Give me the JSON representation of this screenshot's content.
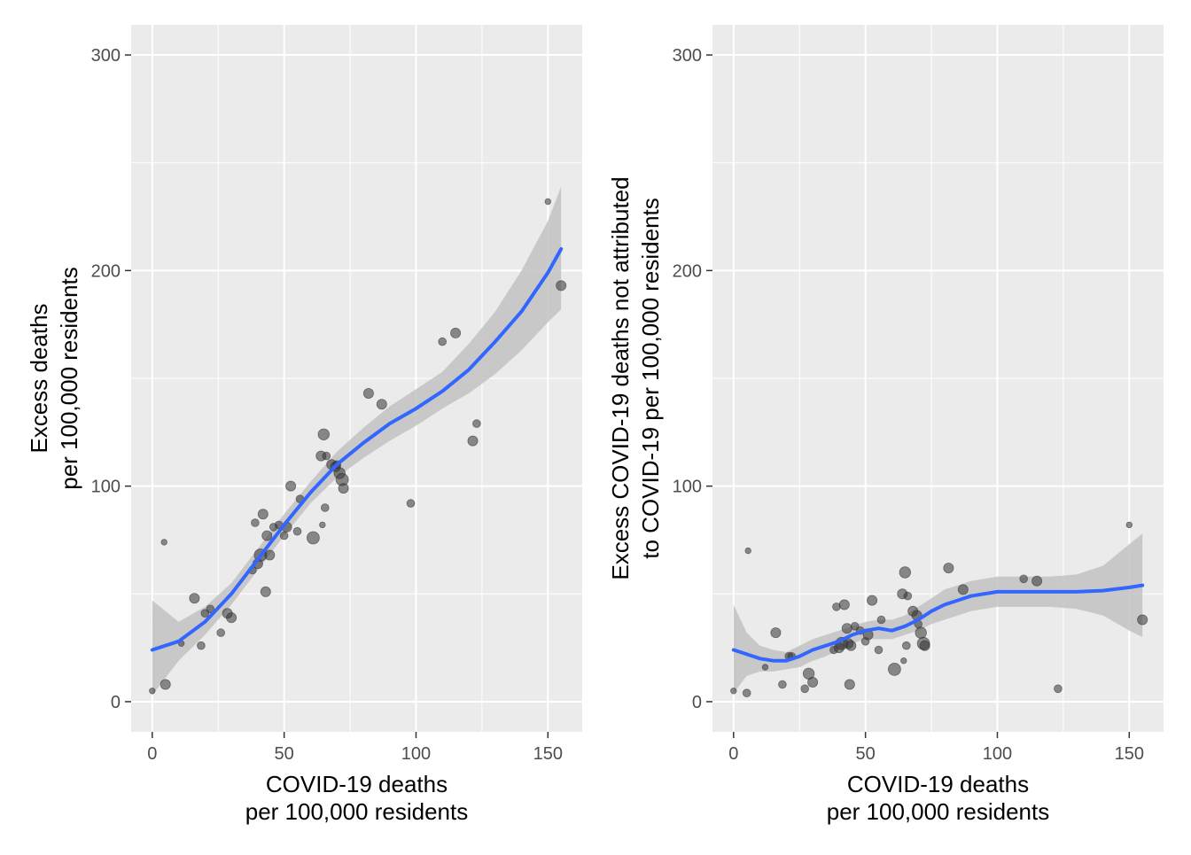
{
  "chart_data": [
    {
      "type": "scatter",
      "title": "",
      "xlabel": [
        "COVID-19 deaths",
        "per 100,000 residents"
      ],
      "ylabel": [
        "Excess deaths",
        "per 100,000 residents"
      ],
      "xlim": [
        -8,
        163
      ],
      "ylim": [
        -14,
        314
      ],
      "xticks": [
        0,
        50,
        100,
        150
      ],
      "yticks": [
        0,
        100,
        200,
        300
      ],
      "grid": true,
      "panel_color": "#EBEBEB",
      "point_color": "#333333",
      "smooth_color": "#3366FF",
      "ribbon_color": "#C2C2C2",
      "points": [
        {
          "x": 0,
          "y": 5,
          "s": 1
        },
        {
          "x": 4.5,
          "y": 74,
          "s": 1
        },
        {
          "x": 5,
          "y": 8,
          "s": 2
        },
        {
          "x": 11,
          "y": 27,
          "s": 1
        },
        {
          "x": 16,
          "y": 48,
          "s": 2
        },
        {
          "x": 18.5,
          "y": 26,
          "s": 1.5
        },
        {
          "x": 20,
          "y": 41,
          "s": 1.5
        },
        {
          "x": 22,
          "y": 43,
          "s": 1.5
        },
        {
          "x": 26,
          "y": 32,
          "s": 1.5
        },
        {
          "x": 28.5,
          "y": 41,
          "s": 2
        },
        {
          "x": 30,
          "y": 39,
          "s": 2
        },
        {
          "x": 38,
          "y": 61,
          "s": 1.5
        },
        {
          "x": 39,
          "y": 83,
          "s": 1.5
        },
        {
          "x": 40,
          "y": 64,
          "s": 2
        },
        {
          "x": 41,
          "y": 68,
          "s": 2.6
        },
        {
          "x": 42,
          "y": 87,
          "s": 2
        },
        {
          "x": 43,
          "y": 51,
          "s": 2
        },
        {
          "x": 43.5,
          "y": 77,
          "s": 2
        },
        {
          "x": 44.5,
          "y": 68,
          "s": 2
        },
        {
          "x": 46,
          "y": 81,
          "s": 1.5
        },
        {
          "x": 48,
          "y": 82,
          "s": 1.5
        },
        {
          "x": 50,
          "y": 77,
          "s": 1.5
        },
        {
          "x": 51,
          "y": 81,
          "s": 2
        },
        {
          "x": 52.5,
          "y": 100,
          "s": 2
        },
        {
          "x": 55,
          "y": 79,
          "s": 1.5
        },
        {
          "x": 56,
          "y": 94,
          "s": 1.5
        },
        {
          "x": 61,
          "y": 76,
          "s": 2.6
        },
        {
          "x": 64,
          "y": 114,
          "s": 2
        },
        {
          "x": 64.5,
          "y": 82,
          "s": 1
        },
        {
          "x": 65,
          "y": 124,
          "s": 2.3
        },
        {
          "x": 65.5,
          "y": 90,
          "s": 1.5
        },
        {
          "x": 66,
          "y": 114,
          "s": 1.5
        },
        {
          "x": 68,
          "y": 110,
          "s": 2
        },
        {
          "x": 69.5,
          "y": 109,
          "s": 2
        },
        {
          "x": 70,
          "y": 110,
          "s": 1.5
        },
        {
          "x": 71,
          "y": 106,
          "s": 2.3
        },
        {
          "x": 72,
          "y": 103,
          "s": 2.6
        },
        {
          "x": 72.5,
          "y": 99,
          "s": 2
        },
        {
          "x": 82,
          "y": 143,
          "s": 2
        },
        {
          "x": 87,
          "y": 138,
          "s": 2
        },
        {
          "x": 98,
          "y": 92,
          "s": 1.5
        },
        {
          "x": 110,
          "y": 167,
          "s": 1.5
        },
        {
          "x": 115,
          "y": 171,
          "s": 2
        },
        {
          "x": 121.5,
          "y": 121,
          "s": 2
        },
        {
          "x": 123,
          "y": 129,
          "s": 1.5
        },
        {
          "x": 150,
          "y": 232,
          "s": 1
        },
        {
          "x": 155,
          "y": 193,
          "s": 2
        }
      ],
      "smooth": [
        [
          0,
          24
        ],
        [
          10,
          28
        ],
        [
          20,
          37
        ],
        [
          30,
          50
        ],
        [
          40,
          66
        ],
        [
          50,
          82
        ],
        [
          60,
          97
        ],
        [
          70,
          110
        ],
        [
          80,
          120
        ],
        [
          90,
          129
        ],
        [
          100,
          136
        ],
        [
          110,
          144
        ],
        [
          120,
          154
        ],
        [
          130,
          167
        ],
        [
          140,
          181
        ],
        [
          150,
          199
        ],
        [
          155,
          210
        ]
      ],
      "ribbon_lower": [
        [
          0,
          3
        ],
        [
          10,
          19
        ],
        [
          20,
          31
        ],
        [
          30,
          45
        ],
        [
          40,
          61
        ],
        [
          50,
          77
        ],
        [
          60,
          92
        ],
        [
          70,
          104
        ],
        [
          80,
          113
        ],
        [
          90,
          121
        ],
        [
          100,
          128
        ],
        [
          110,
          136
        ],
        [
          120,
          143
        ],
        [
          130,
          152
        ],
        [
          140,
          163
        ],
        [
          150,
          176
        ],
        [
          155,
          182
        ]
      ],
      "ribbon_upper": [
        [
          0,
          47
        ],
        [
          10,
          37
        ],
        [
          20,
          44
        ],
        [
          30,
          55
        ],
        [
          40,
          71
        ],
        [
          50,
          87
        ],
        [
          60,
          102
        ],
        [
          70,
          116
        ],
        [
          80,
          127
        ],
        [
          90,
          137
        ],
        [
          100,
          145
        ],
        [
          110,
          153
        ],
        [
          120,
          166
        ],
        [
          130,
          181
        ],
        [
          140,
          200
        ],
        [
          150,
          223
        ],
        [
          155,
          239
        ]
      ]
    },
    {
      "type": "scatter",
      "title": "",
      "xlabel": [
        "COVID-19 deaths",
        "per 100,000 residents"
      ],
      "ylabel": [
        "Excess COVID-19 deaths not attributed",
        "to COVID-19 per 100,000 residents"
      ],
      "xlim": [
        -8,
        163
      ],
      "ylim": [
        -14,
        314
      ],
      "xticks": [
        0,
        50,
        100,
        150
      ],
      "yticks": [
        0,
        100,
        200,
        300
      ],
      "grid": true,
      "panel_color": "#EBEBEB",
      "point_color": "#333333",
      "smooth_color": "#3366FF",
      "ribbon_color": "#C2C2C2",
      "points": [
        {
          "x": 0,
          "y": 5,
          "s": 1
        },
        {
          "x": 5,
          "y": 4,
          "s": 1.5
        },
        {
          "x": 5.5,
          "y": 70,
          "s": 1
        },
        {
          "x": 12,
          "y": 16,
          "s": 1
        },
        {
          "x": 16,
          "y": 32,
          "s": 2
        },
        {
          "x": 18.5,
          "y": 8,
          "s": 1.5
        },
        {
          "x": 21,
          "y": 21,
          "s": 1.5
        },
        {
          "x": 22,
          "y": 21,
          "s": 1.5
        },
        {
          "x": 27,
          "y": 6,
          "s": 1.5
        },
        {
          "x": 28.5,
          "y": 13,
          "s": 2.3
        },
        {
          "x": 30,
          "y": 9,
          "s": 2
        },
        {
          "x": 38,
          "y": 24,
          "s": 1.5
        },
        {
          "x": 39,
          "y": 44,
          "s": 1.5
        },
        {
          "x": 40,
          "y": 25,
          "s": 2
        },
        {
          "x": 41,
          "y": 27,
          "s": 2.6
        },
        {
          "x": 42,
          "y": 45,
          "s": 2
        },
        {
          "x": 43,
          "y": 34,
          "s": 2
        },
        {
          "x": 43.5,
          "y": 27,
          "s": 2
        },
        {
          "x": 44,
          "y": 8,
          "s": 2
        },
        {
          "x": 44.5,
          "y": 26,
          "s": 2
        },
        {
          "x": 46,
          "y": 35,
          "s": 1.5
        },
        {
          "x": 48,
          "y": 33,
          "s": 1.5
        },
        {
          "x": 50,
          "y": 28,
          "s": 1.5
        },
        {
          "x": 51,
          "y": 31,
          "s": 2
        },
        {
          "x": 52.5,
          "y": 47,
          "s": 2
        },
        {
          "x": 55,
          "y": 24,
          "s": 1.5
        },
        {
          "x": 56,
          "y": 38,
          "s": 1.5
        },
        {
          "x": 61,
          "y": 15,
          "s": 2.6
        },
        {
          "x": 64,
          "y": 50,
          "s": 2
        },
        {
          "x": 64.5,
          "y": 19,
          "s": 1
        },
        {
          "x": 65,
          "y": 60,
          "s": 2.3
        },
        {
          "x": 65.5,
          "y": 26,
          "s": 1.5
        },
        {
          "x": 66,
          "y": 49,
          "s": 1.5
        },
        {
          "x": 68,
          "y": 42,
          "s": 2
        },
        {
          "x": 69.5,
          "y": 40,
          "s": 2
        },
        {
          "x": 70,
          "y": 36,
          "s": 1.5
        },
        {
          "x": 71,
          "y": 32,
          "s": 2.3
        },
        {
          "x": 72,
          "y": 27,
          "s": 2.6
        },
        {
          "x": 72.5,
          "y": 26,
          "s": 2
        },
        {
          "x": 81.5,
          "y": 62,
          "s": 2
        },
        {
          "x": 87,
          "y": 52,
          "s": 2
        },
        {
          "x": 110,
          "y": 57,
          "s": 1.5
        },
        {
          "x": 115,
          "y": 56,
          "s": 2
        },
        {
          "x": 123,
          "y": 6,
          "s": 1.5
        },
        {
          "x": 150,
          "y": 82,
          "s": 1
        },
        {
          "x": 155,
          "y": 38,
          "s": 2
        }
      ],
      "smooth": [
        [
          0,
          24
        ],
        [
          5,
          22
        ],
        [
          10,
          20
        ],
        [
          15,
          19
        ],
        [
          20,
          19
        ],
        [
          25,
          21
        ],
        [
          30,
          24
        ],
        [
          35,
          26
        ],
        [
          40,
          28
        ],
        [
          45,
          31
        ],
        [
          50,
          33
        ],
        [
          55,
          34
        ],
        [
          60,
          33
        ],
        [
          65,
          35
        ],
        [
          70,
          38
        ],
        [
          75,
          42
        ],
        [
          80,
          45
        ],
        [
          85,
          47
        ],
        [
          90,
          49
        ],
        [
          100,
          51
        ],
        [
          110,
          51
        ],
        [
          120,
          51
        ],
        [
          130,
          51
        ],
        [
          140,
          51.5
        ],
        [
          150,
          53
        ],
        [
          155,
          54
        ]
      ],
      "ribbon_lower": [
        [
          0,
          4
        ],
        [
          5,
          12
        ],
        [
          10,
          14
        ],
        [
          15,
          14
        ],
        [
          20,
          15
        ],
        [
          25,
          16
        ],
        [
          30,
          19
        ],
        [
          35,
          21
        ],
        [
          40,
          24
        ],
        [
          45,
          27
        ],
        [
          50,
          29
        ],
        [
          55,
          29
        ],
        [
          60,
          29
        ],
        [
          65,
          31
        ],
        [
          70,
          33
        ],
        [
          75,
          36
        ],
        [
          80,
          38
        ],
        [
          85,
          40
        ],
        [
          90,
          42
        ],
        [
          100,
          44
        ],
        [
          110,
          44
        ],
        [
          120,
          44
        ],
        [
          130,
          43
        ],
        [
          140,
          40
        ],
        [
          150,
          33
        ],
        [
          155,
          30
        ]
      ],
      "ribbon_upper": [
        [
          0,
          45
        ],
        [
          5,
          32
        ],
        [
          10,
          26
        ],
        [
          15,
          24
        ],
        [
          20,
          23
        ],
        [
          25,
          26
        ],
        [
          30,
          29
        ],
        [
          35,
          31
        ],
        [
          40,
          33
        ],
        [
          45,
          35
        ],
        [
          50,
          37
        ],
        [
          55,
          38
        ],
        [
          60,
          38
        ],
        [
          65,
          40
        ],
        [
          70,
          44
        ],
        [
          75,
          48
        ],
        [
          80,
          52
        ],
        [
          85,
          54
        ],
        [
          90,
          56
        ],
        [
          100,
          58
        ],
        [
          110,
          58
        ],
        [
          120,
          58
        ],
        [
          130,
          59
        ],
        [
          140,
          63
        ],
        [
          150,
          73
        ],
        [
          155,
          78
        ]
      ]
    }
  ]
}
